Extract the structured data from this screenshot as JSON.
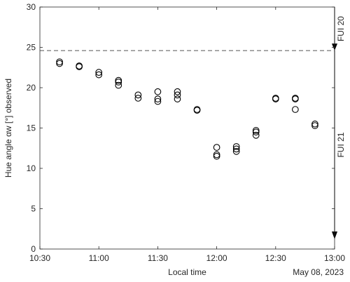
{
  "chart_data": {
    "type": "scatter",
    "title": "",
    "xlabel": "Local time",
    "ylabel": "Hue angle αw [°] observed",
    "x_corner_label": "May 08, 2023",
    "xlim": [
      "10:30",
      "13:00"
    ],
    "ylim": [
      0,
      30
    ],
    "x_ticks": [
      "10:30",
      "11:00",
      "11:30",
      "12:00",
      "12:30",
      "13:00"
    ],
    "y_ticks": [
      0,
      5,
      10,
      15,
      20,
      25,
      30
    ],
    "grid": false,
    "reference_line": {
      "y": 24.6,
      "style": "dashed",
      "color": "#555555"
    },
    "fui_labels": [
      "FUI 20",
      "FUI 21"
    ],
    "marker": {
      "shape": "open-circle",
      "color": "#000000"
    },
    "points": [
      {
        "x": "10:40",
        "y": 23.2
      },
      {
        "x": "10:40",
        "y": 23.0
      },
      {
        "x": "10:50",
        "y": 22.7
      },
      {
        "x": "10:50",
        "y": 22.6
      },
      {
        "x": "11:00",
        "y": 21.9
      },
      {
        "x": "11:00",
        "y": 21.6
      },
      {
        "x": "11:10",
        "y": 20.9
      },
      {
        "x": "11:10",
        "y": 20.7
      },
      {
        "x": "11:10",
        "y": 20.3
      },
      {
        "x": "11:20",
        "y": 19.1
      },
      {
        "x": "11:20",
        "y": 18.7
      },
      {
        "x": "11:30",
        "y": 19.5
      },
      {
        "x": "11:30",
        "y": 18.6
      },
      {
        "x": "11:30",
        "y": 18.3
      },
      {
        "x": "11:40",
        "y": 19.5
      },
      {
        "x": "11:40",
        "y": 19.1
      },
      {
        "x": "11:40",
        "y": 18.6
      },
      {
        "x": "11:50",
        "y": 17.3
      },
      {
        "x": "11:50",
        "y": 17.2
      },
      {
        "x": "12:00",
        "y": 12.6
      },
      {
        "x": "12:00",
        "y": 11.7
      },
      {
        "x": "12:00",
        "y": 11.5
      },
      {
        "x": "12:10",
        "y": 12.7
      },
      {
        "x": "12:10",
        "y": 12.4
      },
      {
        "x": "12:10",
        "y": 12.1
      },
      {
        "x": "12:20",
        "y": 14.7
      },
      {
        "x": "12:20",
        "y": 14.5
      },
      {
        "x": "12:20",
        "y": 14.1
      },
      {
        "x": "12:30",
        "y": 18.7
      },
      {
        "x": "12:30",
        "y": 18.6
      },
      {
        "x": "12:40",
        "y": 18.7
      },
      {
        "x": "12:40",
        "y": 18.6
      },
      {
        "x": "12:40",
        "y": 17.3
      },
      {
        "x": "12:50",
        "y": 15.5
      },
      {
        "x": "12:50",
        "y": 15.3
      }
    ]
  }
}
